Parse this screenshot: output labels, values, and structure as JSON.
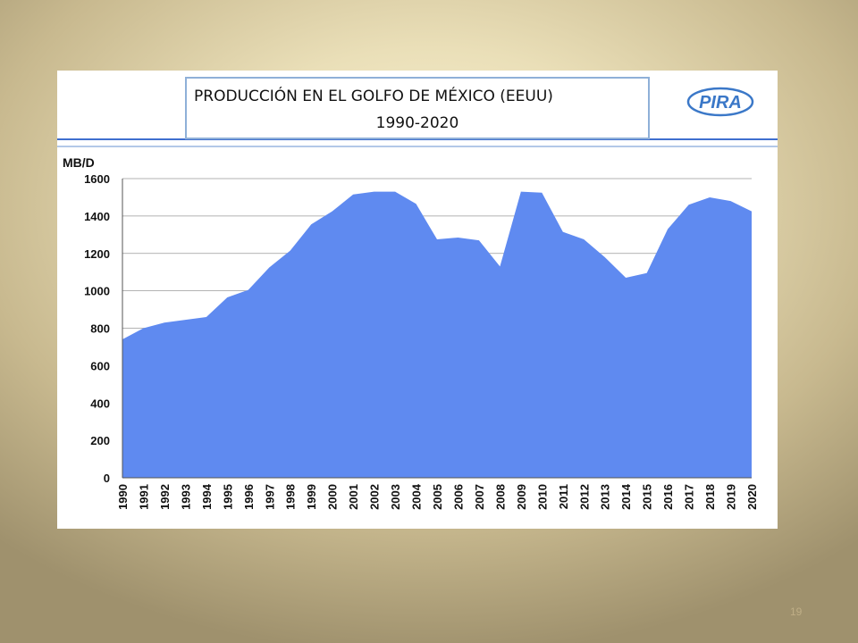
{
  "slide": {
    "number": "19"
  },
  "logo": {
    "text": "PIRA"
  },
  "chart_data": {
    "type": "area",
    "title": "PRODUCCIÓN EN EL GOLFO DE MÉXICO (EEUU)",
    "subtitle": "1990-2020",
    "ylabel": "MB/D",
    "xlabel": "",
    "ylim": [
      0,
      1600
    ],
    "yticks": [
      0,
      200,
      400,
      600,
      800,
      1000,
      1200,
      1400,
      1600
    ],
    "grid": true,
    "fill_color": "#5f8af0",
    "categories": [
      "1990",
      "1991",
      "1992",
      "1993",
      "1994",
      "1995",
      "1996",
      "1997",
      "1998",
      "1999",
      "2000",
      "2001",
      "2002",
      "2003",
      "2004",
      "2005",
      "2006",
      "2007",
      "2008",
      "2009",
      "2010",
      "2011",
      "2012",
      "2013",
      "2014",
      "2015",
      "2016",
      "2017",
      "2018",
      "2019",
      "2020"
    ],
    "series": [
      {
        "values": [
          740,
          800,
          830,
          845,
          860,
          965,
          1005,
          1125,
          1215,
          1355,
          1425,
          1515,
          1530,
          1530,
          1465,
          1275,
          1285,
          1270,
          1130,
          1530,
          1525,
          1315,
          1275,
          1180,
          1070,
          1095,
          1330,
          1460,
          1500,
          1480,
          1425
        ]
      }
    ]
  }
}
